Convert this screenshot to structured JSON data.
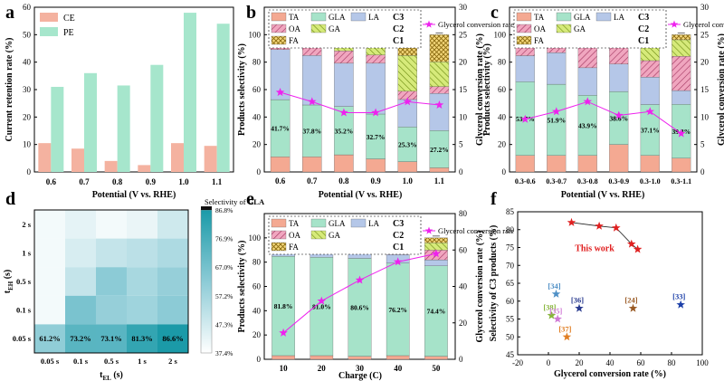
{
  "colors": {
    "TA": "#f4a992",
    "GLA": "#a6e3c9",
    "LA": "#b5c7e8",
    "OA": "#f0a6bf",
    "GA": "#d6ea7a",
    "FA": "#f4d77a",
    "conv": "#ee22ee",
    "CE": "#f4b2a0",
    "PE": "#a6e6cc",
    "heat_lo": "#ffffff",
    "heat_hi": "#1a9aa8"
  },
  "panel_a": {
    "letter": "a",
    "chart_data": {
      "type": "bar",
      "categories": [
        "0.6",
        "0.7",
        "0.8",
        "0.9",
        "1.0",
        "1.1"
      ],
      "series": [
        {
          "name": "CE",
          "values": [
            10.5,
            8.5,
            4,
            2.5,
            10.5,
            9.5
          ]
        },
        {
          "name": "PE",
          "values": [
            31,
            36,
            31.5,
            39,
            58,
            54
          ]
        }
      ],
      "xlabel": "Potential (V vs. RHE)",
      "ylabel": "Current retention rate (%)",
      "ylim": [
        0,
        60
      ],
      "yticks": [
        "0",
        "10",
        "20",
        "30",
        "40",
        "50",
        "60"
      ],
      "legend": "top-left"
    }
  },
  "panel_b": {
    "letter": "b",
    "chart_data": {
      "type": "bar",
      "stacked": true,
      "categories": [
        "0.6",
        "0.7",
        "0.8",
        "0.9",
        "1.0",
        "1.1"
      ],
      "series": [
        {
          "name": "TA",
          "values": [
            11,
            11,
            12.5,
            9.5,
            7.5,
            3
          ]
        },
        {
          "name": "GLA",
          "values": [
            41.7,
            37.8,
            35.2,
            32.7,
            25.3,
            27.2
          ]
        },
        {
          "name": "LA",
          "values": [
            36.5,
            36,
            31.5,
            37,
            20,
            27
          ]
        },
        {
          "name": "OA",
          "values": [
            4,
            7,
            9,
            6,
            6,
            5
          ]
        },
        {
          "name": "GA",
          "values": [
            4,
            4,
            7,
            8,
            26,
            18
          ]
        },
        {
          "name": "FA",
          "values": [
            2.8,
            4.2,
            4.8,
            6.8,
            15.2,
            19.8
          ]
        }
      ],
      "labels": [
        "41.7%",
        "37.8%",
        "35.2%",
        "32.7%",
        "25.3%",
        "27.2%"
      ],
      "line": {
        "name": "Glycerol conversion rate",
        "values": [
          14.5,
          12.8,
          10.8,
          10.8,
          12.8,
          12.2
        ]
      },
      "groups": {
        "c3": "C3",
        "c2": "C2",
        "c1": "C1"
      },
      "xlabel": "Potential (V vs. RHE)",
      "ylabel": "Products selectivity (%)",
      "y2label": "Glycerol conversion rate (%)",
      "ylim": [
        0,
        120
      ],
      "y2lim": [
        0,
        30
      ],
      "yticks": [
        "0",
        "20",
        "40",
        "60",
        "80",
        "100"
      ],
      "y2ticks": [
        "0",
        "5",
        "10",
        "15",
        "20",
        "25",
        "30"
      ]
    }
  },
  "panel_c": {
    "letter": "c",
    "chart_data": {
      "type": "bar",
      "stacked": true,
      "categories": [
        "0.3-0.6",
        "0.3-0.7",
        "0.3-0.8",
        "0.3-0.9",
        "0.3-1.0",
        "0.3-1.1"
      ],
      "series": [
        {
          "name": "TA",
          "values": [
            12,
            12,
            12,
            20,
            12,
            10
          ]
        },
        {
          "name": "GLA",
          "values": [
            53.7,
            51.9,
            43.9,
            38.6,
            37.1,
            39.3
          ]
        },
        {
          "name": "LA",
          "values": [
            19,
            23,
            20,
            20,
            20,
            10
          ]
        },
        {
          "name": "OA",
          "values": [
            8,
            5,
            17,
            12,
            12,
            25
          ]
        },
        {
          "name": "GA",
          "values": [
            4,
            5,
            5,
            7,
            13,
            12
          ]
        },
        {
          "name": "FA",
          "values": [
            3.3,
            3.1,
            2.1,
            2.4,
            5.9,
            3.7
          ]
        }
      ],
      "labels": [
        "53.7%",
        "51.9%",
        "43.9%",
        "38.6%",
        "37.1%",
        "39.3%"
      ],
      "line": {
        "name": "Glycerol conversion rate",
        "values": [
          9.6,
          11,
          12.8,
          10.3,
          11,
          7
        ]
      },
      "groups": {
        "c3": "C3",
        "c2": "C2",
        "c1": "C1"
      },
      "xlabel": "Potential (V vs. RHE)",
      "ylabel": "Products selectivity (%)",
      "y2label": "Glycerol conversion rate (%)",
      "ylim": [
        0,
        120
      ],
      "y2lim": [
        0,
        30
      ],
      "yticks": [
        "0",
        "20",
        "40",
        "60",
        "80",
        "100"
      ],
      "y2ticks": [
        "0",
        "5",
        "10",
        "15",
        "20",
        "25",
        "30"
      ]
    }
  },
  "panel_d": {
    "letter": "d",
    "chart_data": {
      "type": "heatmap",
      "x": [
        "0.05 s",
        "0.1 s",
        "0.5 s",
        "1 s",
        "2 s"
      ],
      "y": [
        "2 s",
        "1 s",
        "0.5 s",
        "0.1 s",
        "0.05 s"
      ],
      "values": [
        [
          null,
          43,
          40,
          42,
          48
        ],
        [
          null,
          46,
          50,
          52,
          55
        ],
        [
          null,
          50,
          62,
          56,
          60
        ],
        [
          null,
          66,
          60,
          58,
          62
        ],
        [
          61.2,
          73.2,
          73.1,
          81.3,
          86.6
        ]
      ],
      "labels": [
        "61.2%",
        "73.2%",
        "73.1%",
        "81.3%",
        "86.6%"
      ],
      "xlabel_main": "t",
      "xlabel_sub": "EL",
      "xlabel_unit": " (s)",
      "ylabel_main": "t",
      "ylabel_sub": "EH",
      "ylabel_unit": " (s)",
      "colorbar_title": "Selectivity of ",
      "colorbar_title_bold": "GLA",
      "colorbar_ticks": [
        "86.8%",
        "76.9%",
        "67.0%",
        "57.2%",
        "47.3%",
        "37.4%"
      ],
      "range": [
        37.4,
        86.8
      ]
    }
  },
  "panel_e": {
    "letter": "e",
    "chart_data": {
      "type": "bar",
      "stacked": true,
      "categories": [
        "10",
        "20",
        "30",
        "40",
        "50"
      ],
      "series": [
        {
          "name": "TA",
          "values": [
            3,
            3,
            2.5,
            3,
            2.5
          ]
        },
        {
          "name": "GLA",
          "values": [
            81.8,
            81,
            80.6,
            76.2,
            74.4
          ]
        },
        {
          "name": "LA",
          "values": [
            3,
            4,
            4,
            7,
            5
          ]
        },
        {
          "name": "OA",
          "values": [
            5,
            4,
            5,
            6,
            8
          ]
        },
        {
          "name": "GA",
          "values": [
            4,
            4,
            5,
            4,
            6
          ]
        },
        {
          "name": "FA",
          "values": [
            3.2,
            4,
            2.9,
            3.8,
            4.1
          ]
        }
      ],
      "labels": [
        "81.8%",
        "81.0%",
        "80.6%",
        "76.2%",
        "74.4%"
      ],
      "line": {
        "name": "Glycerol conversion rate",
        "values": [
          14.5,
          32,
          43.5,
          53.5,
          58
        ]
      },
      "groups": {
        "c3": "C3",
        "c2": "C2",
        "c1": "C1"
      },
      "xlabel": "Charge (C)",
      "ylabel": "Products selectivity (%)",
      "y2label": "Glycerol conversion rate (%)",
      "ylim": [
        0,
        120
      ],
      "y2lim": [
        0,
        80
      ],
      "yticks": [
        "0",
        "20",
        "40",
        "60",
        "80",
        "100"
      ],
      "y2ticks": [
        "0",
        "20",
        "40",
        "60",
        "80"
      ]
    }
  },
  "panel_f": {
    "letter": "f",
    "chart_data": {
      "type": "scatter",
      "this_work": {
        "label": "This work",
        "x": [
          15,
          33,
          44,
          54,
          58
        ],
        "y": [
          82,
          81,
          80.5,
          76,
          74.5
        ]
      },
      "refs": [
        {
          "label": "[34]",
          "x": 5,
          "y": 62,
          "color": "#4f90c6"
        },
        {
          "label": "[36]",
          "x": 20,
          "y": 58,
          "color": "#2a3b8f"
        },
        {
          "label": "[38]",
          "x": 2,
          "y": 56,
          "color": "#87b63a"
        },
        {
          "label": "[35]",
          "x": 6,
          "y": 55,
          "color": "#d07ad6"
        },
        {
          "label": "[37]",
          "x": 12,
          "y": 50,
          "color": "#e07d22"
        },
        {
          "label": "[24]",
          "x": 55,
          "y": 58,
          "color": "#9a5a24"
        },
        {
          "label": "[33]",
          "x": 86,
          "y": 59,
          "color": "#1c3fa8"
        }
      ],
      "xlabel": "Glycerol conversion rate (%)",
      "ylabel": "Selectivity of C3 products (%)",
      "xlim": [
        -20,
        100
      ],
      "ylim": [
        45,
        85
      ],
      "xticks": [
        "-20",
        "0",
        "20",
        "40",
        "60",
        "80",
        "100"
      ],
      "yticks": [
        "45",
        "50",
        "55",
        "60",
        "65",
        "70",
        "75",
        "80",
        "85"
      ]
    }
  }
}
